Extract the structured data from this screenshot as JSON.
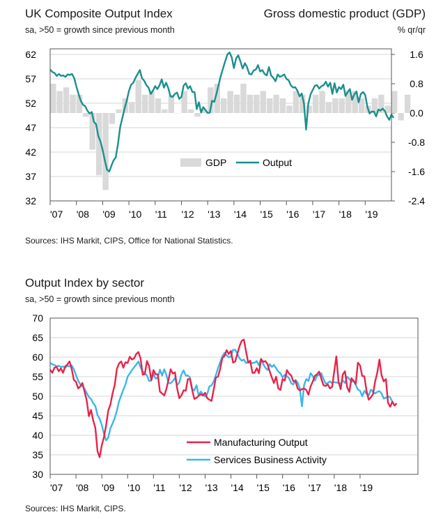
{
  "colors": {
    "output": "#1a8f8c",
    "gdp": "#d9d9d9",
    "manufacturing": "#e8234a",
    "services": "#38b7ea"
  },
  "chart1_text": {
    "title": "UK Composite Output Index",
    "subtitle": "sa, >50 = growth since previous month",
    "right_title": "Gross domestic product (GDP)",
    "right_subtitle": "% qr/qr",
    "source": "Sources: IHS Markit, CIPS, Office for National Statistics."
  },
  "chart2_text": {
    "title": "Output Index by sector",
    "subtitle": "sa, >50 = growth since previous month",
    "source": "Sources: IHS Markit, CIPS."
  },
  "chart_data": [
    {
      "type": "bar+line",
      "title": "UK Composite Output Index",
      "ylabel_left": "sa, >50 = growth since previous month",
      "ylabel_right": "% qr/qr",
      "ylim_left": [
        32,
        62
      ],
      "yticks_left": [
        "62",
        "57",
        "52",
        "47",
        "42",
        "37",
        "32"
      ],
      "ylim_right": [
        -2.4,
        1.6
      ],
      "yticks_right": [
        "1.6",
        "0.8",
        "0.0",
        "-0.8",
        "-1.6",
        "-2.4"
      ],
      "xticks": [
        "'07",
        "'08",
        "'09",
        "'10",
        "'11",
        "'12",
        "'13",
        "'14",
        "'15",
        "'16",
        "'17",
        "'18",
        "'19"
      ],
      "legend": [
        "GDP",
        "Output"
      ],
      "series": [
        {
          "name": "GDP",
          "kind": "bar",
          "start": 2007.0,
          "step": 0.25,
          "values": [
            0.8,
            0.6,
            0.7,
            0.5,
            0.5,
            -0.1,
            -1.0,
            -1.7,
            -2.1,
            -0.3,
            0.1,
            0.4,
            0.3,
            0.9,
            0.5,
            0.6,
            0.4,
            0.1,
            0.5,
            0.0,
            0.6,
            0.1,
            -0.1,
            0.1,
            0.7,
            0.8,
            0.4,
            0.6,
            0.5,
            0.8,
            0.5,
            0.5,
            0.6,
            0.4,
            0.5,
            0.4,
            0.2,
            0.6,
            0.5,
            0.2,
            0.5,
            0.6,
            0.3,
            0.4,
            0.4,
            0.6,
            0.6,
            0.4,
            0.2,
            0.4,
            0.5,
            0.2,
            0.6,
            -0.2,
            0.5
          ]
        },
        {
          "name": "Output",
          "kind": "line",
          "start": 2007.0,
          "step": 0.0833333,
          "values": [
            58.9,
            58.4,
            58.2,
            57.6,
            58.0,
            57.6,
            57.7,
            57.4,
            57.9,
            57.8,
            58.0,
            57.1,
            55.4,
            53.9,
            52.5,
            51.7,
            51.4,
            50.5,
            49.9,
            50.2,
            48.2,
            47.7,
            45.3,
            44.2,
            42.4,
            40.3,
            38.4,
            38.0,
            39.2,
            40.3,
            40.9,
            43.7,
            47.1,
            49.0,
            50.9,
            52.5,
            54.5,
            55.8,
            56.2,
            57.2,
            58.0,
            58.8,
            57.1,
            56.6,
            55.7,
            55.2,
            53.9,
            54.6,
            55.5,
            54.9,
            55.7,
            56.9,
            55.2,
            56.2,
            55.1,
            53.4,
            53.3,
            53.9,
            54.2,
            52.9,
            53.3,
            55.6,
            56.1,
            55.0,
            55.5,
            54.3,
            54.3,
            50.8,
            52.2,
            50.1,
            51.2,
            50.6,
            50.0,
            50.1,
            52.5,
            52.3,
            53.9,
            55.8,
            57.6,
            59.1,
            60.6,
            62.0,
            62.4,
            61.4,
            59.2,
            61.2,
            61.8,
            60.5,
            59.1,
            60.2,
            59.4,
            58.0,
            57.9,
            58.7,
            58.9,
            59.8,
            58.5,
            58.8,
            58.0,
            57.7,
            59.4,
            57.7,
            57.2,
            56.5,
            57.9,
            57.4,
            57.6,
            57.9,
            57.0,
            56.7,
            55.7,
            55.2,
            55.3,
            54.6,
            53.4,
            54.0,
            51.9,
            46.6,
            51.9,
            53.8,
            54.7,
            55.6,
            55.7,
            55.0,
            55.5,
            55.7,
            56.4,
            55.4,
            56.2,
            53.9,
            56.1,
            54.2,
            55.3,
            54.9,
            55.8,
            53.5,
            54.3,
            54.9,
            52.7,
            53.8,
            54.4,
            52.2,
            53.9,
            54.3,
            53.7,
            51.3,
            49.9,
            50.3,
            50.3,
            49.3,
            50.7,
            50.5,
            50.9,
            50.4,
            49.3,
            48.6,
            49.7,
            49.0
          ]
        }
      ]
    },
    {
      "type": "line",
      "title": "Output Index by sector",
      "ylabel": "sa, >50 = growth since previous month",
      "ylim": [
        30,
        70
      ],
      "yticks": [
        "70",
        "65",
        "60",
        "55",
        "50",
        "45",
        "40",
        "35",
        "30"
      ],
      "xticks": [
        "'07",
        "'08",
        "'09",
        "'10",
        "'11",
        "'12",
        "'13",
        "'14",
        "'15",
        "'16",
        "'17",
        "'18",
        "'19"
      ],
      "legend": [
        "Manufacturing Output",
        "Services Business Activity"
      ],
      "series": [
        {
          "name": "Manufacturing Output",
          "start": 2007.0,
          "step": 0.0833333,
          "values": [
            56.8,
            56.0,
            57.3,
            57.5,
            56.4,
            57.1,
            56.0,
            57.6,
            58.1,
            58.9,
            57.0,
            54.2,
            53.7,
            52.0,
            52.5,
            53.4,
            51.2,
            48.9,
            44.9,
            46.5,
            43.8,
            41.9,
            35.9,
            34.4,
            37.5,
            39.5,
            42.5,
            46.3,
            47.9,
            50.7,
            52.9,
            57.0,
            58.4,
            58.9,
            57.3,
            58.7,
            58.5,
            60.1,
            59.4,
            59.7,
            60.8,
            61.3,
            59.7,
            55.5,
            55.7,
            59.0,
            57.7,
            54.1,
            56.7,
            55.6,
            55.6,
            51.2,
            50.7,
            50.2,
            51.8,
            54.2,
            56.9,
            55.8,
            56.1,
            52.0,
            49.5,
            50.2,
            51.5,
            51.4,
            54.4,
            54.4,
            51.6,
            49.3,
            49.6,
            50.1,
            50.5,
            50.2,
            50.9,
            49.5,
            49.1,
            48.8,
            51.7,
            54.8,
            55.0,
            57.0,
            59.8,
            60.3,
            61.8,
            60.8,
            61.6,
            58.6,
            58.9,
            60.9,
            62.8,
            64.2,
            64.5,
            61.5,
            58.6,
            59.1,
            56.0,
            56.0,
            57.2,
            55.9,
            59.5,
            58.8,
            59.0,
            58.2,
            56.4,
            54.8,
            53.4,
            55.0,
            52.0,
            51.6,
            54.4,
            54.0,
            56.7,
            55.8,
            55.3,
            53.8,
            53.9,
            52.0,
            51.5,
            51.8,
            52.0,
            51.6,
            50.4,
            52.5,
            53.7,
            55.2,
            55.6,
            56.3,
            54.5,
            52.8,
            52.6,
            53.0,
            52.0,
            52.4,
            56.3,
            60.2,
            53.7,
            51.8,
            55.6,
            56.4,
            52.3,
            51.1,
            54.6,
            53.9,
            53.1,
            58.6,
            57.9,
            55.2,
            55.1,
            51.4,
            49.1,
            49.7,
            50.5,
            53.8,
            56.0,
            59.4,
            55.4,
            53.8,
            54.4,
            48.3,
            47.3,
            48.6,
            47.6,
            48.2
          ]
        },
        {
          "name": "Services Business Activity",
          "start": 2007.0,
          "step": 0.0833333,
          "values": [
            58.5,
            58.2,
            58.0,
            57.6,
            57.8,
            57.5,
            57.6,
            57.3,
            57.8,
            57.6,
            57.9,
            56.9,
            55.4,
            54.0,
            53.0,
            52.6,
            51.9,
            50.8,
            49.8,
            49.3,
            48.2,
            47.5,
            45.2,
            44.2,
            42.6,
            40.4,
            38.7,
            39.4,
            41.8,
            43.0,
            44.4,
            46.3,
            48.7,
            50.2,
            51.7,
            53.0,
            55.0,
            55.8,
            56.7,
            57.4,
            58.1,
            58.9,
            57.4,
            56.3,
            55.8,
            55.3,
            53.9,
            54.0,
            55.7,
            54.5,
            54.7,
            56.8,
            55.3,
            56.9,
            55.5,
            53.4,
            53.3,
            53.9,
            54.7,
            52.8,
            53.5,
            55.6,
            56.6,
            55.3,
            55.3,
            54.8,
            51.9,
            51.5,
            52.8,
            50.2,
            51.2,
            50.5,
            49.9,
            50.6,
            52.5,
            52.8,
            53.8,
            55.4,
            57.2,
            58.7,
            60.2,
            61.1,
            60.5,
            60.0,
            60.1,
            61.9,
            61.9,
            60.9,
            59.7,
            59.1,
            59.4,
            58.5,
            58.7,
            58.6,
            58.5,
            58.6,
            59.0,
            57.9,
            59.6,
            58.2,
            57.3,
            56.7,
            58.2,
            57.5,
            58.0,
            57.2,
            56.3,
            55.9,
            54.8,
            55.5,
            55.1,
            54.6,
            53.3,
            53.0,
            54.2,
            53.5,
            52.1,
            47.4,
            52.9,
            54.4,
            53.9,
            55.9,
            55.2,
            54.0,
            55.2,
            55.5,
            55.9,
            54.4,
            53.2,
            53.4,
            53.8,
            53.4,
            53.6,
            53.5,
            53.4,
            53.2,
            54.0,
            53.4,
            55.0,
            54.4,
            53.6,
            54.1,
            52.9,
            51.7,
            51.4,
            50.0,
            51.4,
            50.6,
            50.2,
            51.7,
            51.2,
            50.7,
            51.1,
            51.3,
            50.7,
            49.4,
            49.6,
            50.0,
            49.7,
            48.6
          ]
        }
      ]
    }
  ]
}
